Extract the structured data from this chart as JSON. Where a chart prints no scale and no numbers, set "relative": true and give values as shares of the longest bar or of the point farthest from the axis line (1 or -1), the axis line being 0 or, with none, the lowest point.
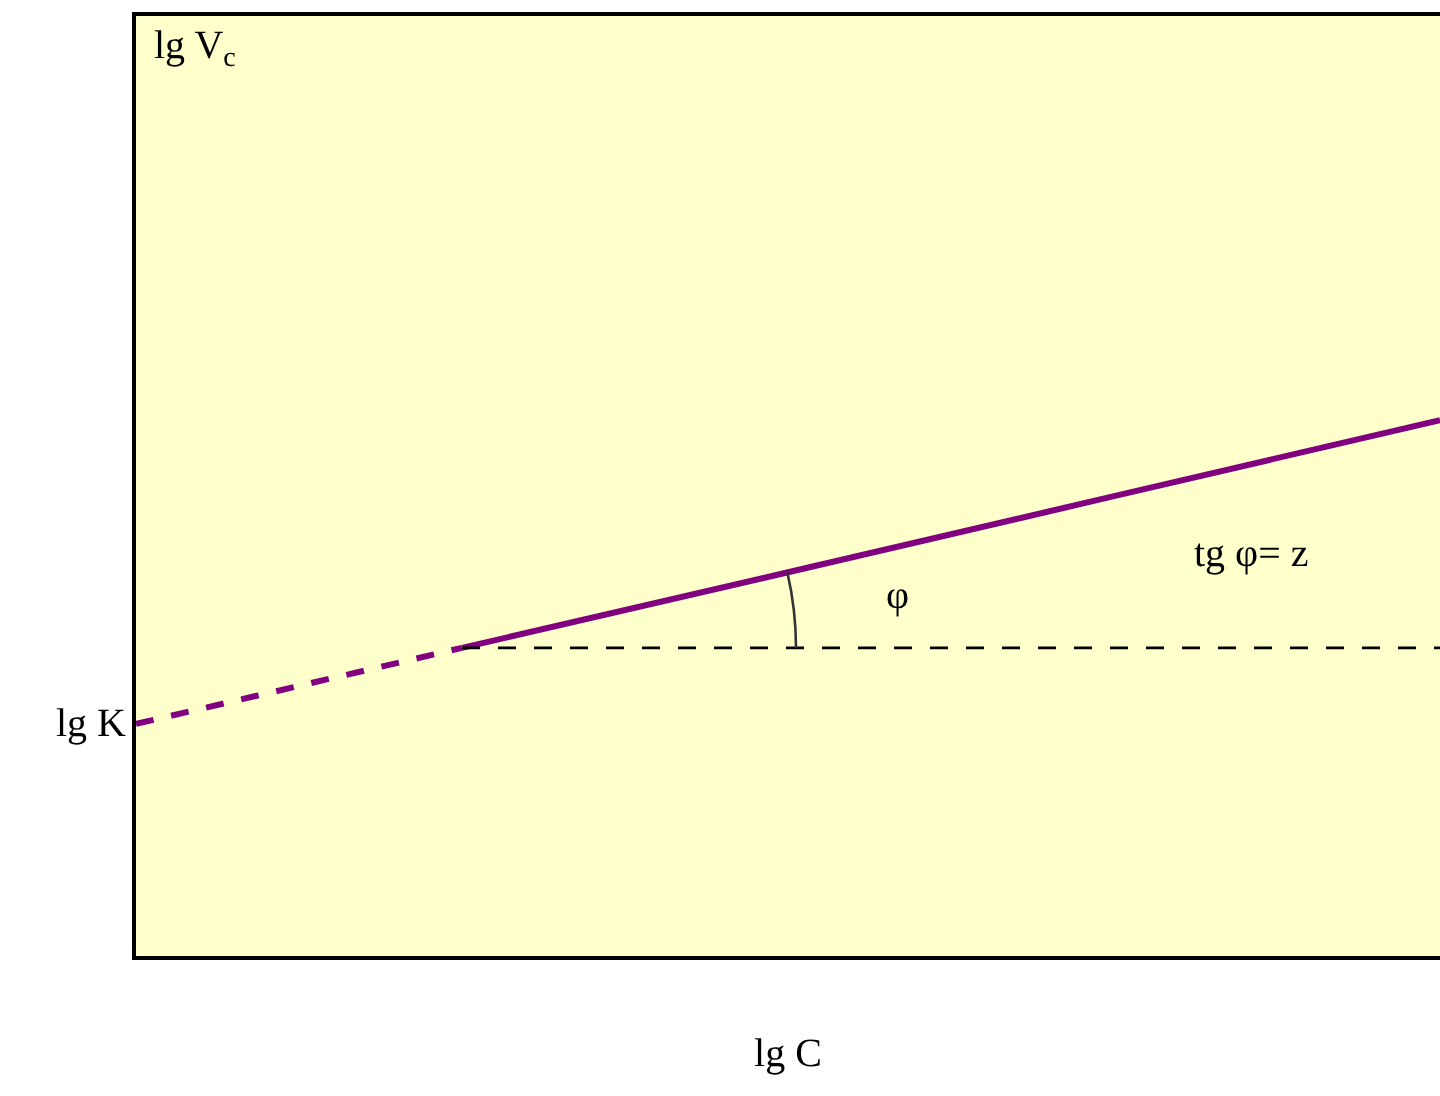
{
  "chart_data": {
    "type": "line",
    "relative": true,
    "xlabel": "lg C",
    "categories": [
      null,
      null,
      null,
      null,
      null
    ],
    "series": [
      {
        "color": "#800080",
        "line_style": "dashed",
        "values": [
          0.433,
          0.575,
          null,
          null,
          null
        ]
      },
      {
        "color": "#800080",
        "line_style": "solid",
        "values": [
          null,
          0.575,
          0.716,
          0.858,
          1
        ]
      },
      {
        "color": "#000000",
        "line_style": "dashed",
        "values": [
          null,
          0.575,
          0.575,
          0.575,
          0.575
        ]
      }
    ],
    "annotations": [
      "lg V$_{c}$",
      "lg K",
      "φ",
      "tg φ= z"
    ],
    "marker": "none"
  }
}
